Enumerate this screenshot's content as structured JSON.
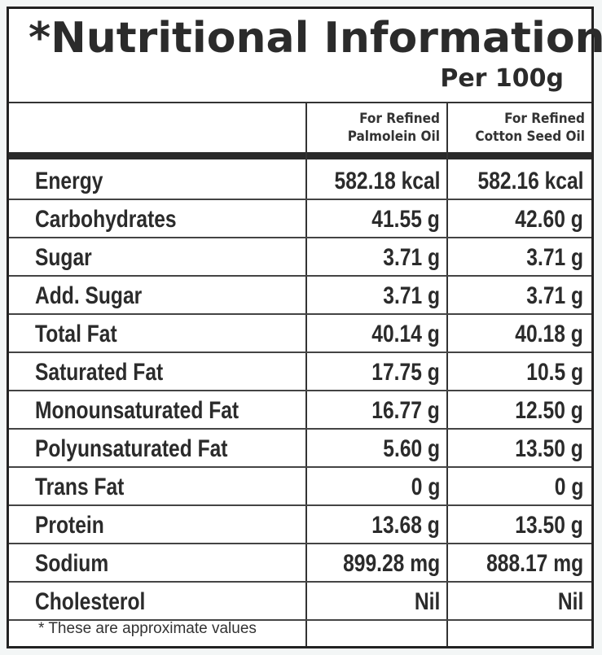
{
  "header": {
    "title": "*Nutritional Information",
    "per": "Per 100g"
  },
  "columns": [
    {
      "line1": "For Refined",
      "line2": "Palmolein Oil"
    },
    {
      "line1": "For Refined",
      "line2": "Cotton Seed Oil"
    }
  ],
  "rows": [
    {
      "label": "Energy",
      "a": "582.18 kcal",
      "b": "582.16 kcal"
    },
    {
      "label": "Carbohydrates",
      "a": "41.55 g",
      "b": "42.60 g"
    },
    {
      "label": "Sugar",
      "a": "3.71 g",
      "b": "3.71 g"
    },
    {
      "label": "Add. Sugar",
      "a": "3.71 g",
      "b": "3.71 g"
    },
    {
      "label": "Total Fat",
      "a": "40.14 g",
      "b": "40.18 g"
    },
    {
      "label": "Saturated Fat",
      "a": "17.75 g",
      "b": "10.5 g"
    },
    {
      "label": "Monounsaturated Fat",
      "a": "16.77 g",
      "b": "12.50 g"
    },
    {
      "label": "Polyunsaturated Fat",
      "a": "5.60 g",
      "b": "13.50 g"
    },
    {
      "label": "Trans Fat",
      "a": "0 g",
      "b": "0 g"
    },
    {
      "label": "Protein",
      "a": "13.68 g",
      "b": "13.50 g"
    },
    {
      "label": "Sodium",
      "a": "899.28 mg",
      "b": "888.17 mg"
    },
    {
      "label": "Cholesterol",
      "a": "Nil",
      "b": "Nil"
    }
  ],
  "footnote": "* These are approximate values"
}
